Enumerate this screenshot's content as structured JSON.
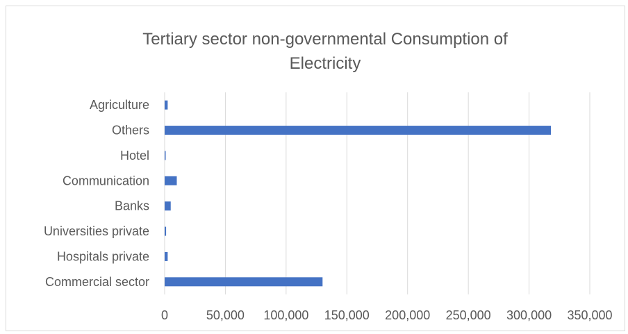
{
  "chart_data": {
    "type": "bar",
    "orientation": "horizontal",
    "title_lines": [
      "Tertiary sector non-governmental Consumption of",
      "Electricity"
    ],
    "categories": [
      "Commercial sector",
      "Hospitals private",
      "Universities private",
      "Banks",
      "Communication",
      "Hotel",
      "Others",
      "Agriculture"
    ],
    "values": [
      130000,
      2500,
      1200,
      5000,
      10000,
      800,
      318000,
      2500
    ],
    "xlim": [
      0,
      350000
    ],
    "xticks": [
      0,
      50000,
      100000,
      150000,
      200000,
      250000,
      300000,
      350000
    ],
    "xtick_labels": [
      "0",
      "50,000",
      "100,000",
      "150,000",
      "200,000",
      "250,000",
      "300,000",
      "350,000"
    ],
    "grid": true,
    "legend": "none",
    "bar_color": "#4472c4"
  }
}
